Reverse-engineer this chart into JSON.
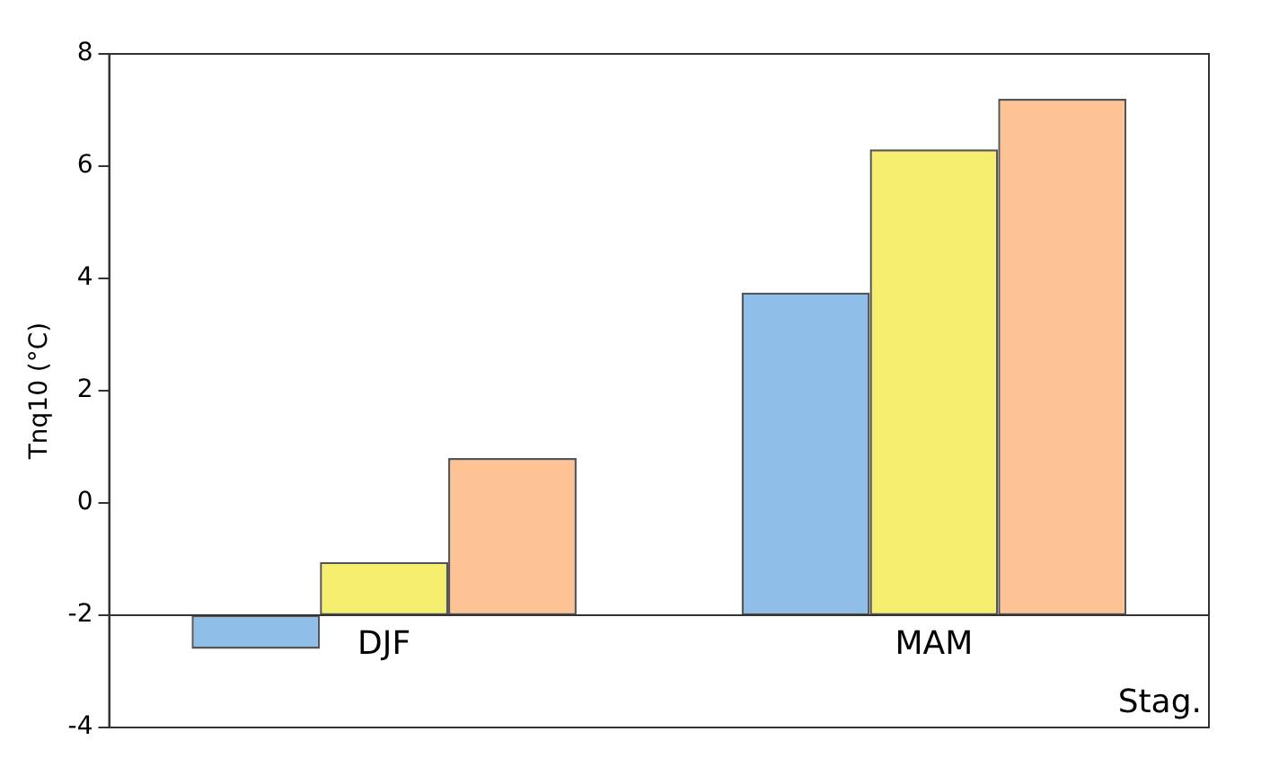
{
  "chart_data": {
    "type": "bar",
    "ylabel": "Tnq10 (°C)",
    "xlabel": "Stag.",
    "categories": [
      "DJF",
      "MAM"
    ],
    "series": [
      {
        "color": "#8fbfe8",
        "base": [
          -2,
          -2
        ],
        "values": [
          -0.6,
          5.75
        ]
      },
      {
        "color": "#f5ee6e",
        "base": [
          -2,
          -2
        ],
        "values": [
          0.95,
          8.3
        ]
      },
      {
        "color": "#fdc395",
        "base": [
          -2,
          -2
        ],
        "values": [
          2.8,
          9.2
        ]
      }
    ],
    "ylim": [
      -4,
      8
    ],
    "yticks": [
      -4,
      -2,
      0,
      2,
      4,
      6,
      8
    ],
    "grid": false,
    "legend": false
  }
}
